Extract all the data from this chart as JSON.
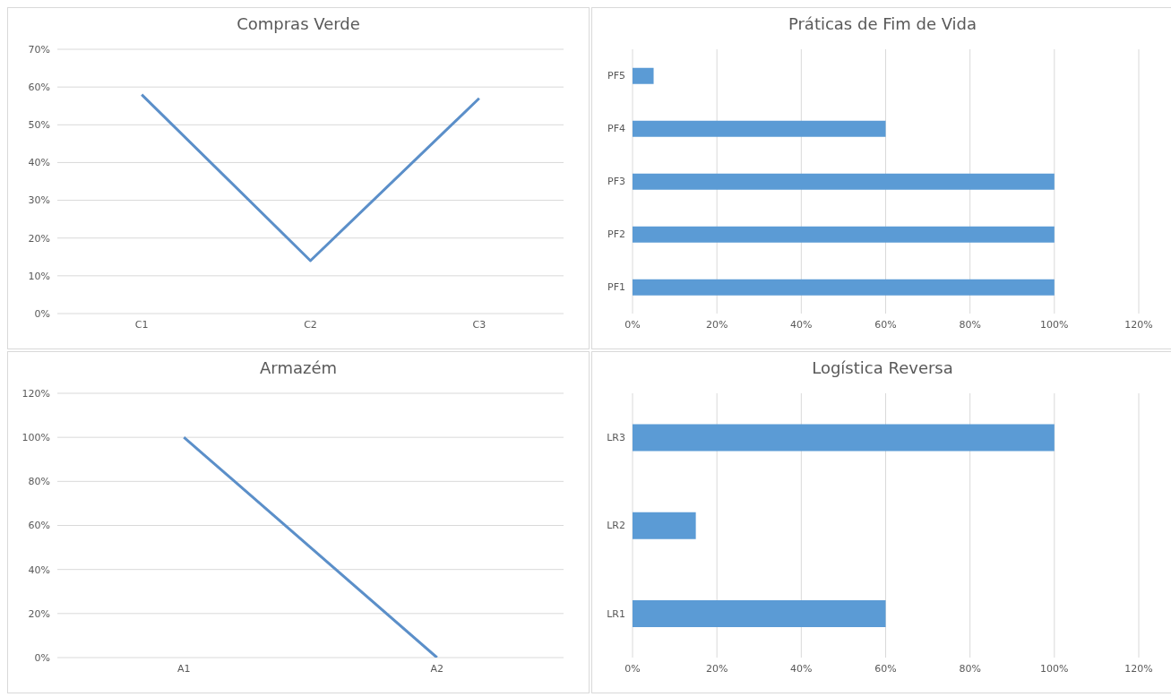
{
  "chart_data": [
    {
      "type": "line",
      "title": "Compras Verde",
      "categories": [
        "C1",
        "C2",
        "C3"
      ],
      "values": [
        58,
        14,
        57
      ],
      "color": "#5b8fc9",
      "ylim": [
        0,
        70
      ],
      "yticks": [
        {
          "value": 0,
          "label": "0%"
        },
        {
          "value": 10,
          "label": "10%"
        },
        {
          "value": 20,
          "label": "20%"
        },
        {
          "value": 30,
          "label": "30%"
        },
        {
          "value": 40,
          "label": "40%"
        },
        {
          "value": 50,
          "label": "50%"
        },
        {
          "value": 60,
          "label": "60%"
        },
        {
          "value": 70,
          "label": "70%"
        }
      ],
      "grid": "y",
      "marker": "none"
    },
    {
      "type": "bar",
      "orientation": "horizontal",
      "title": "Práticas de Fim de Vida",
      "categories": [
        "PF5",
        "PF4",
        "PF3",
        "PF2",
        "PF1"
      ],
      "values": [
        5,
        60,
        100,
        100,
        100
      ],
      "color": "#5b9bd5",
      "xlim": [
        0,
        120
      ],
      "xticks": [
        {
          "value": 0,
          "label": "0%"
        },
        {
          "value": 20,
          "label": "20%"
        },
        {
          "value": 40,
          "label": "40%"
        },
        {
          "value": 60,
          "label": "60%"
        },
        {
          "value": 80,
          "label": "80%"
        },
        {
          "value": 100,
          "label": "100%"
        },
        {
          "value": 120,
          "label": "120%"
        }
      ],
      "grid": "x"
    },
    {
      "type": "line",
      "title": "Armazém",
      "categories": [
        "A1",
        "A2"
      ],
      "values": [
        100,
        0
      ],
      "color": "#5b8fc9",
      "ylim": [
        0,
        120
      ],
      "yticks": [
        {
          "value": 0,
          "label": "0%"
        },
        {
          "value": 20,
          "label": "20%"
        },
        {
          "value": 40,
          "label": "40%"
        },
        {
          "value": 60,
          "label": "60%"
        },
        {
          "value": 80,
          "label": "80%"
        },
        {
          "value": 100,
          "label": "100%"
        },
        {
          "value": 120,
          "label": "120%"
        }
      ],
      "grid": "y",
      "marker": "none"
    },
    {
      "type": "bar",
      "orientation": "horizontal",
      "title": "Logística Reversa",
      "categories": [
        "LR3",
        "LR2",
        "LR1"
      ],
      "values": [
        100,
        15,
        60
      ],
      "color": "#5b9bd5",
      "xlim": [
        0,
        120
      ],
      "xticks": [
        {
          "value": 0,
          "label": "0%"
        },
        {
          "value": 20,
          "label": "20%"
        },
        {
          "value": 40,
          "label": "40%"
        },
        {
          "value": 60,
          "label": "60%"
        },
        {
          "value": 80,
          "label": "80%"
        },
        {
          "value": 100,
          "label": "100%"
        },
        {
          "value": 120,
          "label": "120%"
        }
      ],
      "grid": "x"
    }
  ]
}
